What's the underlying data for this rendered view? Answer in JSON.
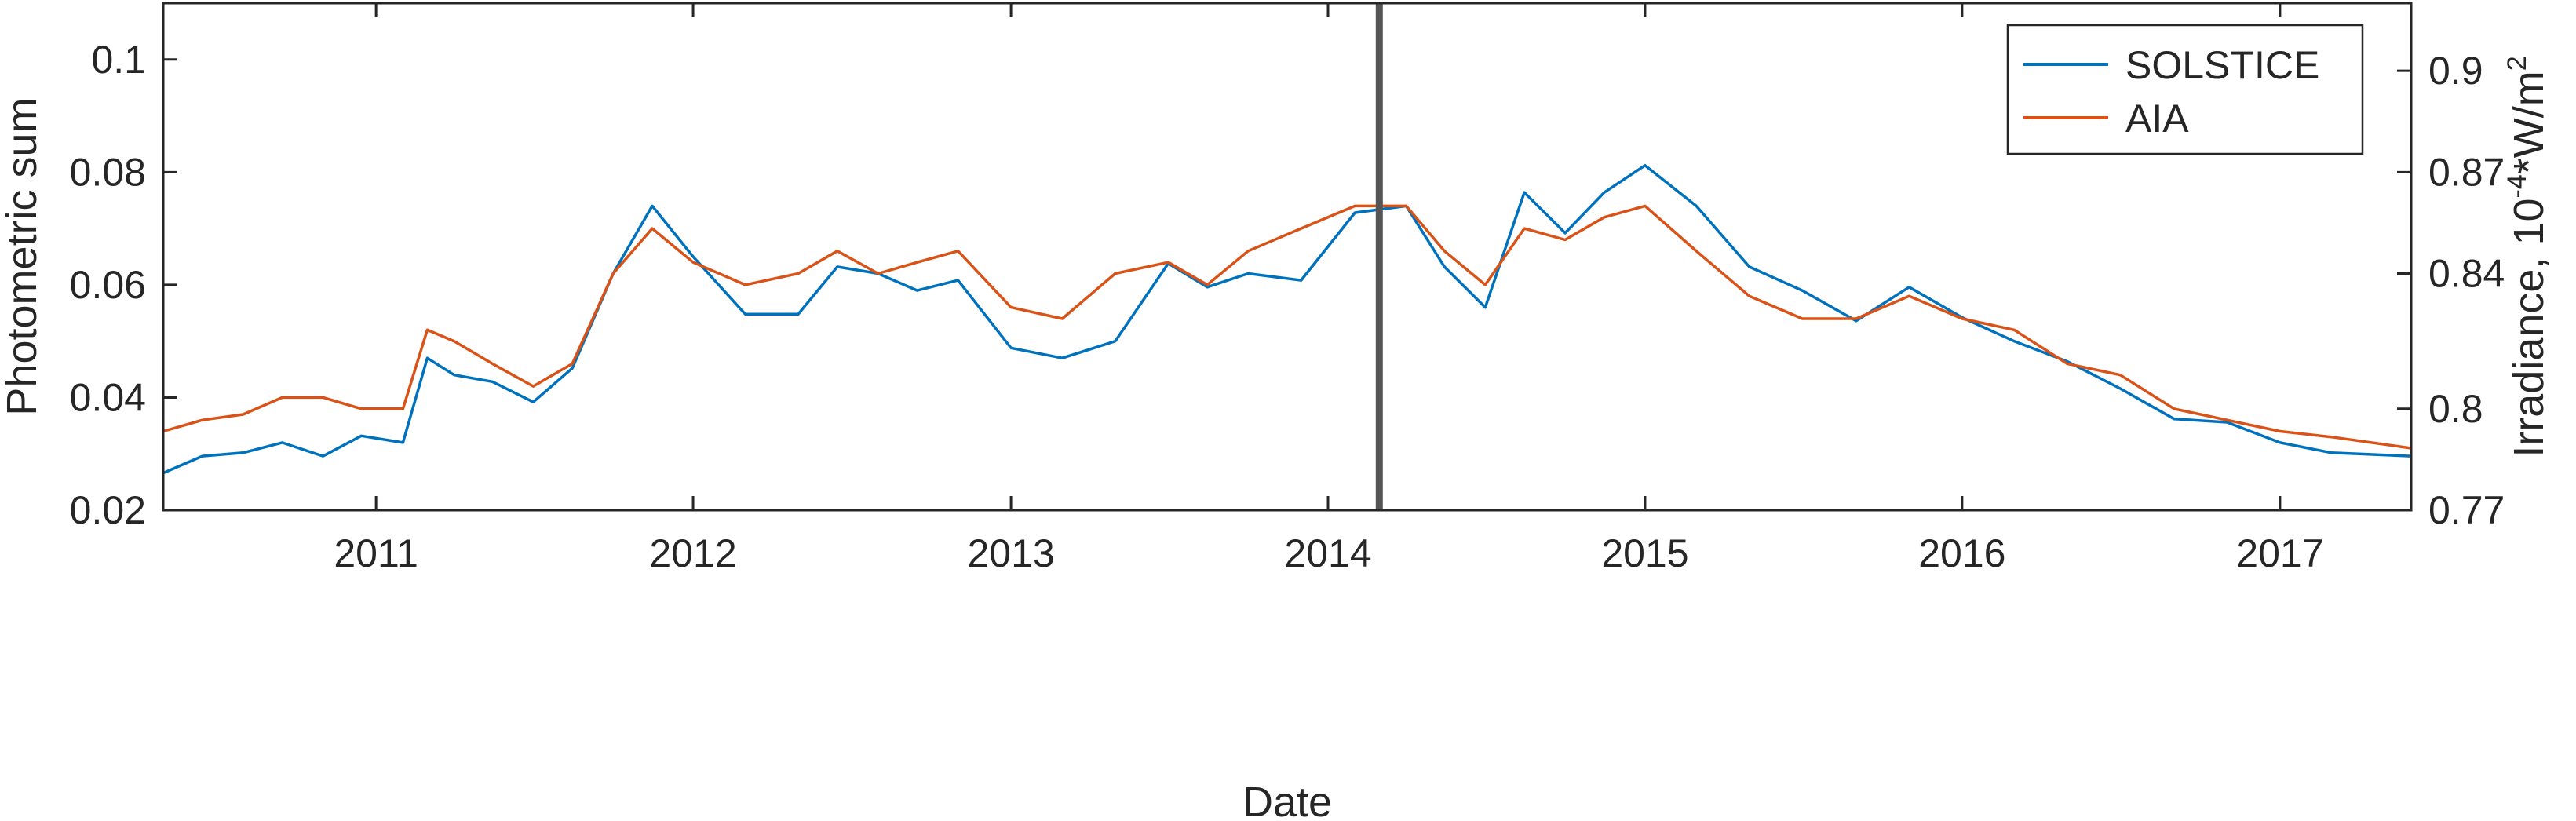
{
  "chart_data": {
    "type": "line",
    "xlabel": "Date",
    "ylabel_left": "Photometric sum",
    "ylabel_right": "Irradiance, 10",
    "ylabel_right_sup": "-4",
    "ylabel_right_unit": "*W/m",
    "ylabel_right_unit_sup": "2",
    "xlim": [
      "2010-05-01",
      "2017-06-01"
    ],
    "ylim_left": [
      0.02,
      0.11
    ],
    "ylim_right": [
      0.77,
      0.92
    ],
    "x_ticks": [
      {
        "date": "2011-01-01",
        "label": "2011"
      },
      {
        "date": "2012-01-01",
        "label": "2012"
      },
      {
        "date": "2013-01-01",
        "label": "2013"
      },
      {
        "date": "2014-01-01",
        "label": "2014"
      },
      {
        "date": "2015-01-01",
        "label": "2015"
      },
      {
        "date": "2016-01-01",
        "label": "2016"
      },
      {
        "date": "2017-01-01",
        "label": "2017"
      }
    ],
    "y_ticks_left": [
      {
        "value": 0.02,
        "label": "0.02"
      },
      {
        "value": 0.04,
        "label": "0.04"
      },
      {
        "value": 0.06,
        "label": "0.06"
      },
      {
        "value": 0.08,
        "label": "0.08"
      },
      {
        "value": 0.1,
        "label": "0.1"
      }
    ],
    "y_ticks_right": [
      {
        "value": 0.77,
        "label": "0.77"
      },
      {
        "value": 0.8,
        "label": "0.8"
      },
      {
        "value": 0.84,
        "label": "0.84"
      },
      {
        "value": 0.87,
        "label": "0.87"
      },
      {
        "value": 0.9,
        "label": "0.9"
      }
    ],
    "vertical_marker": {
      "date": "2014-03-01",
      "color": "#555555"
    },
    "legend": {
      "position": "top-right"
    },
    "grid": false,
    "series": [
      {
        "name": "SOLSTICE",
        "axis": "right",
        "color": "#0072BD",
        "points": [
          [
            "2010-05-01",
            0.781
          ],
          [
            "2010-06-15",
            0.786
          ],
          [
            "2010-08-01",
            0.787
          ],
          [
            "2010-09-15",
            0.79
          ],
          [
            "2010-11-01",
            0.786
          ],
          [
            "2010-12-15",
            0.792
          ],
          [
            "2011-02-01",
            0.79
          ],
          [
            "2011-03-01",
            0.815
          ],
          [
            "2011-04-01",
            0.81
          ],
          [
            "2011-05-15",
            0.808
          ],
          [
            "2011-07-01",
            0.802
          ],
          [
            "2011-08-15",
            0.812
          ],
          [
            "2011-10-01",
            0.84
          ],
          [
            "2011-11-15",
            0.86
          ],
          [
            "2012-01-01",
            0.845
          ],
          [
            "2012-03-01",
            0.828
          ],
          [
            "2012-05-01",
            0.828
          ],
          [
            "2012-06-15",
            0.842
          ],
          [
            "2012-08-01",
            0.84
          ],
          [
            "2012-09-15",
            0.835
          ],
          [
            "2012-11-01",
            0.838
          ],
          [
            "2013-01-01",
            0.818
          ],
          [
            "2013-03-01",
            0.815
          ],
          [
            "2013-05-01",
            0.82
          ],
          [
            "2013-07-01",
            0.843
          ],
          [
            "2013-08-15",
            0.836
          ],
          [
            "2013-10-01",
            0.84
          ],
          [
            "2013-12-01",
            0.838
          ],
          [
            "2014-02-01",
            0.858
          ],
          [
            "2014-04-01",
            0.86
          ],
          [
            "2014-05-15",
            0.842
          ],
          [
            "2014-07-01",
            0.83
          ],
          [
            "2014-08-15",
            0.864
          ],
          [
            "2014-10-01",
            0.852
          ],
          [
            "2014-11-15",
            0.864
          ],
          [
            "2015-01-01",
            0.872
          ],
          [
            "2015-03-01",
            0.86
          ],
          [
            "2015-05-01",
            0.842
          ],
          [
            "2015-07-01",
            0.835
          ],
          [
            "2015-09-01",
            0.826
          ],
          [
            "2015-11-01",
            0.836
          ],
          [
            "2016-01-01",
            0.827
          ],
          [
            "2016-03-01",
            0.82
          ],
          [
            "2016-05-01",
            0.814
          ],
          [
            "2016-07-01",
            0.806
          ],
          [
            "2016-09-01",
            0.797
          ],
          [
            "2016-11-01",
            0.796
          ],
          [
            "2017-01-01",
            0.79
          ],
          [
            "2017-03-01",
            0.787
          ],
          [
            "2017-06-01",
            0.786
          ]
        ]
      },
      {
        "name": "AIA",
        "axis": "left",
        "color": "#D95319",
        "points": [
          [
            "2010-05-01",
            0.034
          ],
          [
            "2010-06-15",
            0.036
          ],
          [
            "2010-08-01",
            0.037
          ],
          [
            "2010-09-15",
            0.04
          ],
          [
            "2010-11-01",
            0.04
          ],
          [
            "2010-12-15",
            0.038
          ],
          [
            "2011-02-01",
            0.038
          ],
          [
            "2011-03-01",
            0.052
          ],
          [
            "2011-04-01",
            0.05
          ],
          [
            "2011-05-15",
            0.046
          ],
          [
            "2011-07-01",
            0.042
          ],
          [
            "2011-08-15",
            0.046
          ],
          [
            "2011-10-01",
            0.062
          ],
          [
            "2011-11-15",
            0.07
          ],
          [
            "2012-01-01",
            0.064
          ],
          [
            "2012-03-01",
            0.06
          ],
          [
            "2012-05-01",
            0.062
          ],
          [
            "2012-06-15",
            0.066
          ],
          [
            "2012-08-01",
            0.062
          ],
          [
            "2012-09-15",
            0.064
          ],
          [
            "2012-11-01",
            0.066
          ],
          [
            "2013-01-01",
            0.056
          ],
          [
            "2013-03-01",
            0.054
          ],
          [
            "2013-05-01",
            0.062
          ],
          [
            "2013-07-01",
            0.064
          ],
          [
            "2013-08-15",
            0.06
          ],
          [
            "2013-10-01",
            0.066
          ],
          [
            "2013-12-01",
            0.07
          ],
          [
            "2014-02-01",
            0.074
          ],
          [
            "2014-04-01",
            0.074
          ],
          [
            "2014-05-15",
            0.066
          ],
          [
            "2014-07-01",
            0.06
          ],
          [
            "2014-08-15",
            0.07
          ],
          [
            "2014-10-01",
            0.068
          ],
          [
            "2014-11-15",
            0.072
          ],
          [
            "2015-01-01",
            0.074
          ],
          [
            "2015-03-01",
            0.066
          ],
          [
            "2015-05-01",
            0.058
          ],
          [
            "2015-07-01",
            0.054
          ],
          [
            "2015-09-01",
            0.054
          ],
          [
            "2015-11-01",
            0.058
          ],
          [
            "2016-01-01",
            0.054
          ],
          [
            "2016-03-01",
            0.052
          ],
          [
            "2016-05-01",
            0.046
          ],
          [
            "2016-07-01",
            0.044
          ],
          [
            "2016-09-01",
            0.038
          ],
          [
            "2016-11-01",
            0.036
          ],
          [
            "2017-01-01",
            0.034
          ],
          [
            "2017-03-01",
            0.033
          ],
          [
            "2017-06-01",
            0.031
          ]
        ]
      }
    ]
  }
}
